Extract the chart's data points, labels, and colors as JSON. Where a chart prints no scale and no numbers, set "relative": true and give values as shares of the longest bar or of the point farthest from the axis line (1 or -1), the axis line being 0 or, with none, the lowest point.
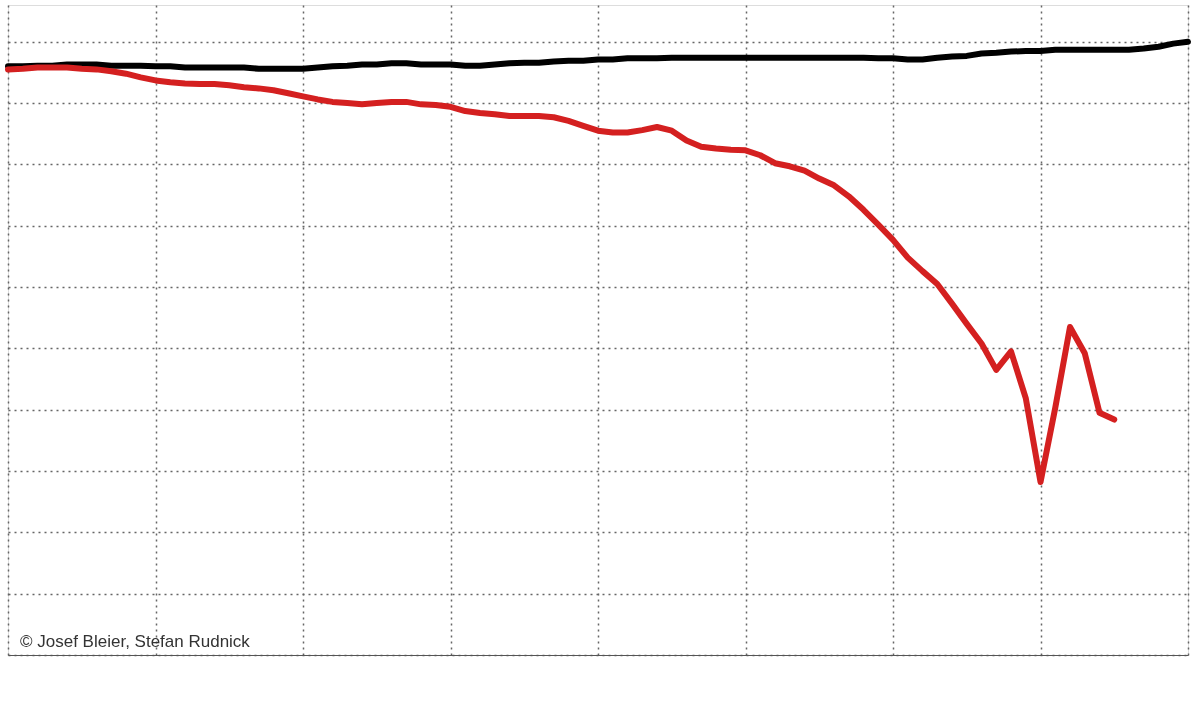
{
  "chart_data": {
    "type": "line",
    "relative": true,
    "grid": true,
    "tick_labels": false,
    "categories": [
      null,
      null,
      null,
      null,
      null,
      null,
      null,
      null,
      null,
      null,
      null,
      null,
      null,
      null,
      null,
      null,
      null,
      null,
      null,
      null,
      null,
      null,
      null,
      null,
      null,
      null,
      null,
      null,
      null,
      null,
      null,
      null,
      null,
      null,
      null,
      null,
      null,
      null,
      null,
      null,
      null,
      null,
      null,
      null,
      null,
      null,
      null,
      null,
      null,
      null,
      null,
      null,
      null,
      null,
      null,
      null,
      null,
      null,
      null,
      null,
      null,
      null,
      null,
      null,
      null,
      null,
      null,
      null,
      null,
      null,
      null,
      null,
      null,
      null,
      null,
      null,
      null,
      null,
      null,
      null,
      null
    ],
    "series": [
      {
        "color": "#000000",
        "values": [
          0.96,
          0.96,
          0.961,
          0.961,
          0.963,
          0.963,
          0.963,
          0.961,
          0.961,
          0.961,
          0.96,
          0.96,
          0.958,
          0.958,
          0.958,
          0.958,
          0.958,
          0.956,
          0.956,
          0.956,
          0.956,
          0.958,
          0.96,
          0.961,
          0.963,
          0.963,
          0.965,
          0.965,
          0.963,
          0.963,
          0.963,
          0.961,
          0.961,
          0.963,
          0.965,
          0.966,
          0.966,
          0.968,
          0.969,
          0.969,
          0.971,
          0.971,
          0.973,
          0.973,
          0.973,
          0.974,
          0.974,
          0.974,
          0.974,
          0.974,
          0.974,
          0.974,
          0.974,
          0.974,
          0.974,
          0.974,
          0.974,
          0.974,
          0.974,
          0.973,
          0.973,
          0.971,
          0.971,
          0.974,
          0.976,
          0.977,
          0.981,
          0.982,
          0.984,
          0.985,
          0.985,
          0.987,
          0.987,
          0.987,
          0.987,
          0.987,
          0.987,
          0.989,
          0.992,
          0.997,
          1
        ]
      },
      {
        "color": "#d42020",
        "values": [
          0.955,
          0.956,
          0.958,
          0.958,
          0.958,
          0.956,
          0.955,
          0.952,
          0.948,
          0.942,
          0.937,
          0.934,
          0.932,
          0.931,
          0.931,
          0.929,
          0.926,
          0.924,
          0.921,
          0.916,
          0.911,
          0.906,
          0.902,
          0.9,
          0.898,
          0.9,
          0.902,
          0.902,
          0.898,
          0.897,
          0.894,
          0.887,
          0.884,
          0.882,
          0.879,
          0.879,
          0.879,
          0.877,
          0.871,
          0.863,
          0.855,
          0.852,
          0.852,
          0.856,
          0.861,
          0.855,
          0.839,
          0.829,
          0.826,
          0.824,
          0.823,
          0.815,
          0.802,
          0.797,
          0.79,
          0.777,
          0.766,
          0.748,
          0.726,
          0.702,
          0.677,
          0.648,
          0.626,
          0.605,
          0.573,
          0.54,
          0.508,
          0.465,
          0.495,
          0.419,
          0.282,
          0.403,
          0.535,
          0.492,
          0.395,
          0.384,
          null,
          null,
          null,
          null,
          null
        ]
      }
    ],
    "annotations": [
      "© Josef Bleier, Stefan Rudnick"
    ]
  }
}
